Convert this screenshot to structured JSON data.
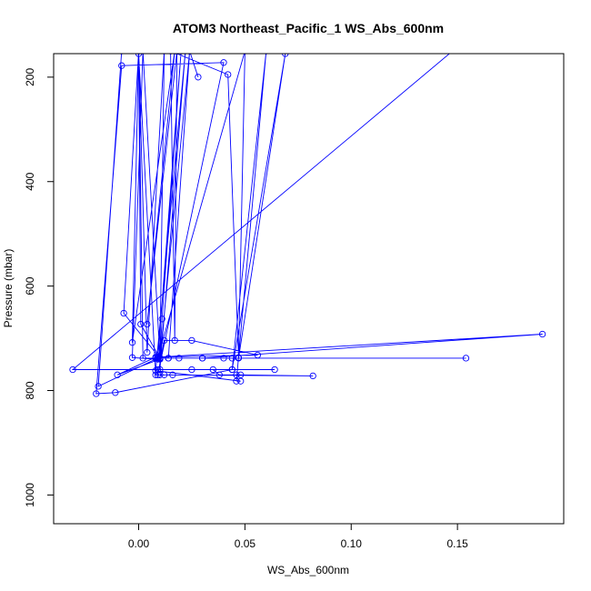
{
  "chart_data": {
    "type": "line",
    "title": "ATOM3 Northeast_Pacific_1 WS_Abs_600nm",
    "xlabel": "WS_Abs_600nm",
    "ylabel": "Pressure (mbar)",
    "xlim": [
      -0.04,
      0.2
    ],
    "ylim": [
      1055,
      155
    ],
    "y_reversed": true,
    "x_ticks": [
      0.0,
      0.05,
      0.1,
      0.15
    ],
    "x_tick_labels": [
      "0.00",
      "0.05",
      "0.10",
      "0.15"
    ],
    "y_ticks": [
      200,
      400,
      600,
      800,
      1000
    ],
    "y_tick_labels": [
      "200",
      "400",
      "600",
      "800",
      "1000"
    ],
    "grid": false,
    "series": [
      {
        "color": "#0000ff",
        "marker": "open-circle",
        "points": [
          {
            "x": 0.155,
            "y": 125
          },
          {
            "x": -0.031,
            "y": 760
          },
          {
            "x": 0.009,
            "y": 760
          },
          {
            "x": 0.064,
            "y": 760
          },
          {
            "x": 0.044,
            "y": 760
          },
          {
            "x": 0.069,
            "y": 155
          },
          {
            "x": 0.047,
            "y": 738
          },
          {
            "x": 0.154,
            "y": 738
          },
          {
            "x": 0.044,
            "y": 738
          },
          {
            "x": 0.04,
            "y": 738
          },
          {
            "x": 0.03,
            "y": 738
          },
          {
            "x": 0.019,
            "y": 738
          },
          {
            "x": 0.014,
            "y": 738
          },
          {
            "x": 0.01,
            "y": 738
          },
          {
            "x": 0.009,
            "y": 738
          },
          {
            "x": 0.008,
            "y": 738
          },
          {
            "x": 0.01,
            "y": 738
          },
          {
            "x": 0.002,
            "y": 738
          },
          {
            "x": 0.0,
            "y": 155
          },
          {
            "x": 0.008,
            "y": 770
          },
          {
            "x": 0.016,
            "y": 770
          },
          {
            "x": 0.012,
            "y": 770
          },
          {
            "x": 0.01,
            "y": 770
          },
          {
            "x": 0.082,
            "y": 772
          },
          {
            "x": 0.048,
            "y": 770
          },
          {
            "x": 0.046,
            "y": 770
          },
          {
            "x": 0.038,
            "y": 770
          },
          {
            "x": 0.035,
            "y": 760
          },
          {
            "x": 0.025,
            "y": 760
          },
          {
            "x": 0.01,
            "y": 760
          },
          {
            "x": 0.022,
            "y": 150
          },
          {
            "x": 0.008,
            "y": 762
          },
          {
            "x": 0.048,
            "y": 782
          },
          {
            "x": 0.046,
            "y": 782
          },
          {
            "x": 0.06,
            "y": 150
          },
          {
            "x": 0.044,
            "y": 760
          },
          {
            "x": -0.011,
            "y": 804
          },
          {
            "x": -0.02,
            "y": 806
          },
          {
            "x": -0.008,
            "y": 178
          },
          {
            "x": 0.04,
            "y": 172
          },
          {
            "x": 0.009,
            "y": 770
          },
          {
            "x": 0.012,
            "y": 704
          },
          {
            "x": 0.025,
            "y": 704
          },
          {
            "x": 0.056,
            "y": 732
          },
          {
            "x": 0.009,
            "y": 736
          },
          {
            "x": 0.19,
            "y": 692
          },
          {
            "x": 0.03,
            "y": 738
          },
          {
            "x": 0.014,
            "y": 738
          },
          {
            "x": 0.024,
            "y": 150
          },
          {
            "x": 0.028,
            "y": 200
          },
          {
            "x": 0.024,
            "y": 150
          },
          {
            "x": 0.01,
            "y": 740
          },
          {
            "x": -0.01,
            "y": 770
          },
          {
            "x": 0.008,
            "y": 736
          },
          {
            "x": 0.01,
            "y": 740
          },
          {
            "x": 0.011,
            "y": 663
          },
          {
            "x": 0.02,
            "y": 150
          },
          {
            "x": 0.009,
            "y": 740
          },
          {
            "x": -0.003,
            "y": 737
          },
          {
            "x": 0.002,
            "y": 150
          },
          {
            "x": 0.01,
            "y": 738
          },
          {
            "x": 0.012,
            "y": 150
          },
          {
            "x": 0.004,
            "y": 727
          },
          {
            "x": 0.0,
            "y": 150
          },
          {
            "x": 0.001,
            "y": 673
          },
          {
            "x": 0.01,
            "y": 738
          },
          {
            "x": -0.007,
            "y": 652
          },
          {
            "x": 0.0,
            "y": 150
          },
          {
            "x": -0.003,
            "y": 708
          },
          {
            "x": 0.017,
            "y": 150
          },
          {
            "x": 0.004,
            "y": 673
          },
          {
            "x": 0.018,
            "y": 150
          },
          {
            "x": 0.017,
            "y": 704
          },
          {
            "x": 0.015,
            "y": 150
          },
          {
            "x": 0.042,
            "y": 195
          },
          {
            "x": 0.047,
            "y": 737
          },
          {
            "x": 0.05,
            "y": 150
          },
          {
            "x": 0.009,
            "y": 738
          },
          {
            "x": 0.009,
            "y": 738
          },
          {
            "x": -0.019,
            "y": 792
          },
          {
            "x": -0.008,
            "y": 150
          }
        ]
      }
    ]
  }
}
